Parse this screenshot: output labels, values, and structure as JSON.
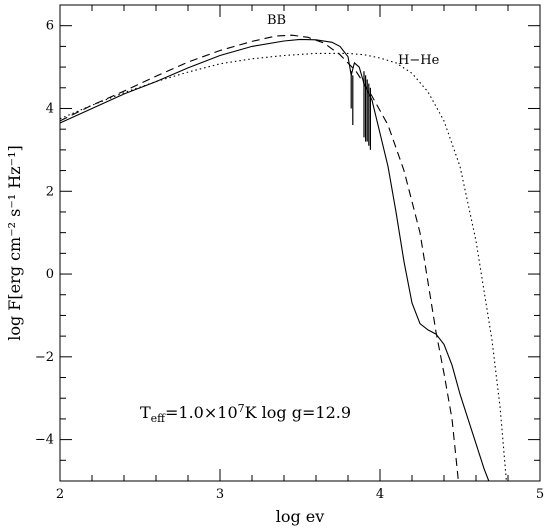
{
  "chart_data": {
    "type": "line",
    "title": "",
    "xlabel": "log ev",
    "ylabel": "log F[erg cm⁻² s⁻¹ Hz⁻¹]",
    "xlim": [
      2,
      5
    ],
    "ylim": [
      -5,
      6.5
    ],
    "x_ticks": [
      2,
      3,
      4,
      5
    ],
    "y_ticks": [
      -4,
      -2,
      0,
      2,
      4,
      6
    ],
    "grid": false,
    "annotations": {
      "bb_label": "BB",
      "hhe_label": "H−He",
      "param_T": "T",
      "param_sub": "eff",
      "param_val": "=1.0×10",
      "param_exp": "7",
      "param_rest": "K  log  g=12.9"
    },
    "series": [
      {
        "name": "",
        "style": "solid",
        "points": [
          [
            2.0,
            3.65
          ],
          [
            2.2,
            4.0
          ],
          [
            2.4,
            4.35
          ],
          [
            2.6,
            4.65
          ],
          [
            2.8,
            4.98
          ],
          [
            3.0,
            5.28
          ],
          [
            3.2,
            5.5
          ],
          [
            3.4,
            5.63
          ],
          [
            3.5,
            5.67
          ],
          [
            3.6,
            5.66
          ],
          [
            3.7,
            5.6
          ],
          [
            3.75,
            5.5
          ],
          [
            3.8,
            5.25
          ],
          [
            3.82,
            4.8
          ],
          [
            3.84,
            5.1
          ],
          [
            3.87,
            5.0
          ],
          [
            3.9,
            4.6
          ],
          [
            3.95,
            4.2
          ],
          [
            4.0,
            3.4
          ],
          [
            4.05,
            2.6
          ],
          [
            4.1,
            1.5
          ],
          [
            4.15,
            0.3
          ],
          [
            4.2,
            -0.7
          ],
          [
            4.25,
            -1.2
          ],
          [
            4.3,
            -1.35
          ],
          [
            4.35,
            -1.45
          ],
          [
            4.4,
            -1.7
          ],
          [
            4.45,
            -2.2
          ],
          [
            4.5,
            -2.9
          ],
          [
            4.55,
            -3.5
          ],
          [
            4.6,
            -4.1
          ],
          [
            4.65,
            -4.7
          ],
          [
            4.68,
            -5.0
          ]
        ],
        "lines": [
          [
            3.82,
            4.0,
            4.9
          ],
          [
            3.83,
            3.6,
            4.8
          ],
          [
            3.9,
            3.3,
            4.9
          ],
          [
            3.91,
            3.2,
            4.8
          ],
          [
            3.92,
            3.2,
            4.7
          ],
          [
            3.93,
            3.1,
            4.6
          ],
          [
            3.94,
            3.0,
            4.5
          ]
        ]
      },
      {
        "name": "",
        "style": "dashed",
        "points": [
          [
            2.0,
            3.7
          ],
          [
            2.2,
            4.08
          ],
          [
            2.4,
            4.42
          ],
          [
            2.6,
            4.78
          ],
          [
            2.8,
            5.12
          ],
          [
            3.0,
            5.4
          ],
          [
            3.2,
            5.62
          ],
          [
            3.35,
            5.75
          ],
          [
            3.45,
            5.77
          ],
          [
            3.55,
            5.72
          ],
          [
            3.65,
            5.58
          ],
          [
            3.75,
            5.3
          ],
          [
            3.85,
            4.9
          ],
          [
            3.95,
            4.3
          ],
          [
            4.05,
            3.6
          ],
          [
            4.15,
            2.5
          ],
          [
            4.25,
            1.0
          ],
          [
            4.3,
            -0.2
          ],
          [
            4.35,
            -1.4
          ],
          [
            4.4,
            -2.4
          ],
          [
            4.45,
            -3.5
          ],
          [
            4.49,
            -5.0
          ]
        ]
      },
      {
        "name": "",
        "style": "dotted",
        "points": [
          [
            2.0,
            3.75
          ],
          [
            2.2,
            4.08
          ],
          [
            2.4,
            4.38
          ],
          [
            2.6,
            4.65
          ],
          [
            2.8,
            4.88
          ],
          [
            3.0,
            5.08
          ],
          [
            3.2,
            5.2
          ],
          [
            3.4,
            5.28
          ],
          [
            3.6,
            5.33
          ],
          [
            3.8,
            5.33
          ],
          [
            3.9,
            5.3
          ],
          [
            4.0,
            5.22
          ],
          [
            4.1,
            5.1
          ],
          [
            4.2,
            4.85
          ],
          [
            4.3,
            4.4
          ],
          [
            4.4,
            3.7
          ],
          [
            4.5,
            2.6
          ],
          [
            4.6,
            0.8
          ],
          [
            4.7,
            -1.6
          ],
          [
            4.75,
            -3.2
          ],
          [
            4.79,
            -5.0
          ]
        ]
      }
    ]
  }
}
